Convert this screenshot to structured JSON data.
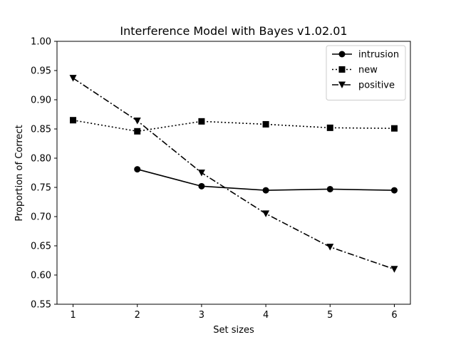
{
  "chart_data": {
    "type": "line",
    "title": "Interference Model with Bayes v1.02.01",
    "xlabel": "Set sizes",
    "ylabel": "Proportion of Correct",
    "x": [
      1,
      2,
      3,
      4,
      5,
      6
    ],
    "x_ticks": [
      "1",
      "2",
      "3",
      "4",
      "5",
      "6"
    ],
    "xlim": [
      0.75,
      6.25
    ],
    "ylim": [
      0.55,
      1.0
    ],
    "y_ticks": [
      "0.55",
      "0.60",
      "0.65",
      "0.70",
      "0.75",
      "0.80",
      "0.85",
      "0.90",
      "0.95",
      "1.00"
    ],
    "grid": false,
    "legend_position": "top-right",
    "series": [
      {
        "name": "intrusion",
        "x": [
          2,
          3,
          4,
          5,
          6
        ],
        "values": [
          0.781,
          0.752,
          0.745,
          0.747,
          0.745
        ],
        "linestyle": "solid",
        "marker": "circle",
        "color": "#000000"
      },
      {
        "name": "new",
        "x": [
          1,
          2,
          3,
          4,
          5,
          6
        ],
        "values": [
          0.865,
          0.846,
          0.863,
          0.858,
          0.852,
          0.851
        ],
        "linestyle": "dotted",
        "marker": "square",
        "color": "#000000"
      },
      {
        "name": "positive",
        "x": [
          1,
          2,
          3,
          4,
          5,
          6
        ],
        "values": [
          0.937,
          0.864,
          0.775,
          0.705,
          0.648,
          0.61
        ],
        "linestyle": "dashdot",
        "marker": "triangle-down",
        "color": "#000000"
      }
    ]
  }
}
